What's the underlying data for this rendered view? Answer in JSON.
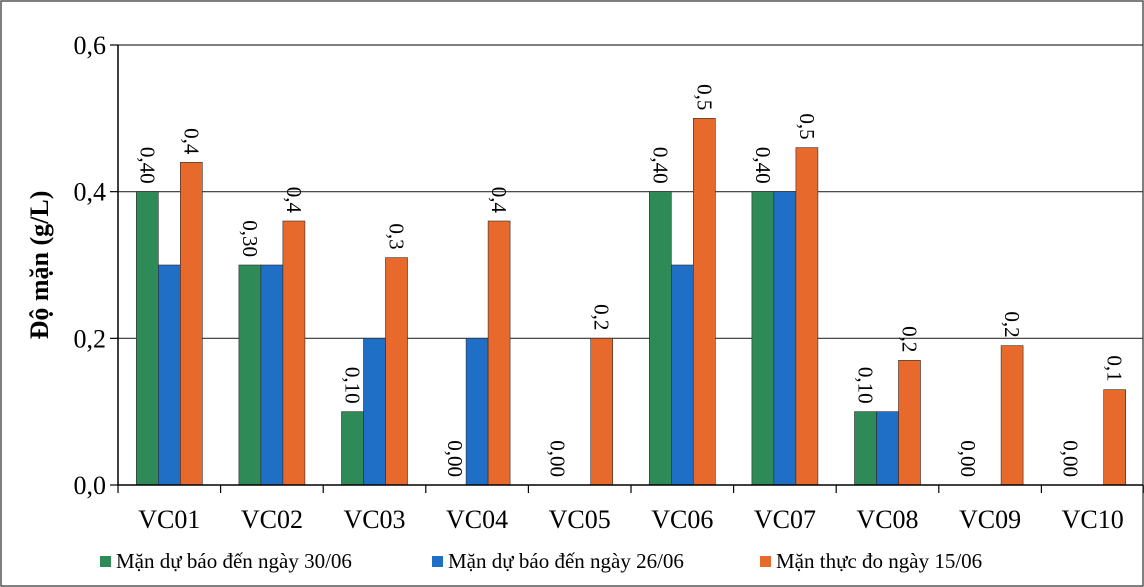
{
  "chart_data": {
    "type": "bar",
    "title": "",
    "xlabel": "",
    "ylabel": "Độ mặn (g/L)",
    "ylim": [
      0,
      0.6
    ],
    "yticks": [
      "0,0",
      "0,2",
      "0,4",
      "0,6"
    ],
    "ytick_values": [
      0,
      0.2,
      0.4,
      0.6
    ],
    "grid": true,
    "legend_position": "bottom",
    "categories": [
      "VC01",
      "VC02",
      "VC03",
      "VC04",
      "VC05",
      "VC06",
      "VC07",
      "VC08",
      "VC09",
      "VC10"
    ],
    "series": [
      {
        "name": "Mặn dự báo đến ngày 30/06",
        "color": "#2e8b57",
        "values": [
          0.4,
          0.3,
          0.1,
          0.0,
          0.0,
          0.4,
          0.4,
          0.1,
          0.0,
          0.0
        ],
        "labels": [
          "0,40",
          "0,30",
          "0,10",
          "0,00",
          "0,00",
          "0,40",
          "0,40",
          "0,10",
          "0,00",
          "0,00"
        ]
      },
      {
        "name": "Mặn dự báo đến ngày 26/06",
        "color": "#1f6fc6",
        "values": [
          0.3,
          0.3,
          0.2,
          0.2,
          0.0,
          0.3,
          0.4,
          0.1,
          0.0,
          0.0
        ],
        "labels": [
          "",
          "",
          "",
          "",
          "",
          "",
          "",
          "",
          "",
          ""
        ]
      },
      {
        "name": "Mặn thực đo ngày 15/06",
        "color": "#e8692c",
        "values": [
          0.44,
          0.36,
          0.31,
          0.36,
          0.2,
          0.5,
          0.46,
          0.17,
          0.19,
          0.13
        ],
        "labels": [
          "0,4",
          "0,4",
          "0,3",
          "0,4",
          "0,2",
          "0,5",
          "0,5",
          "0,2",
          "0,2",
          "0,1"
        ]
      }
    ]
  }
}
